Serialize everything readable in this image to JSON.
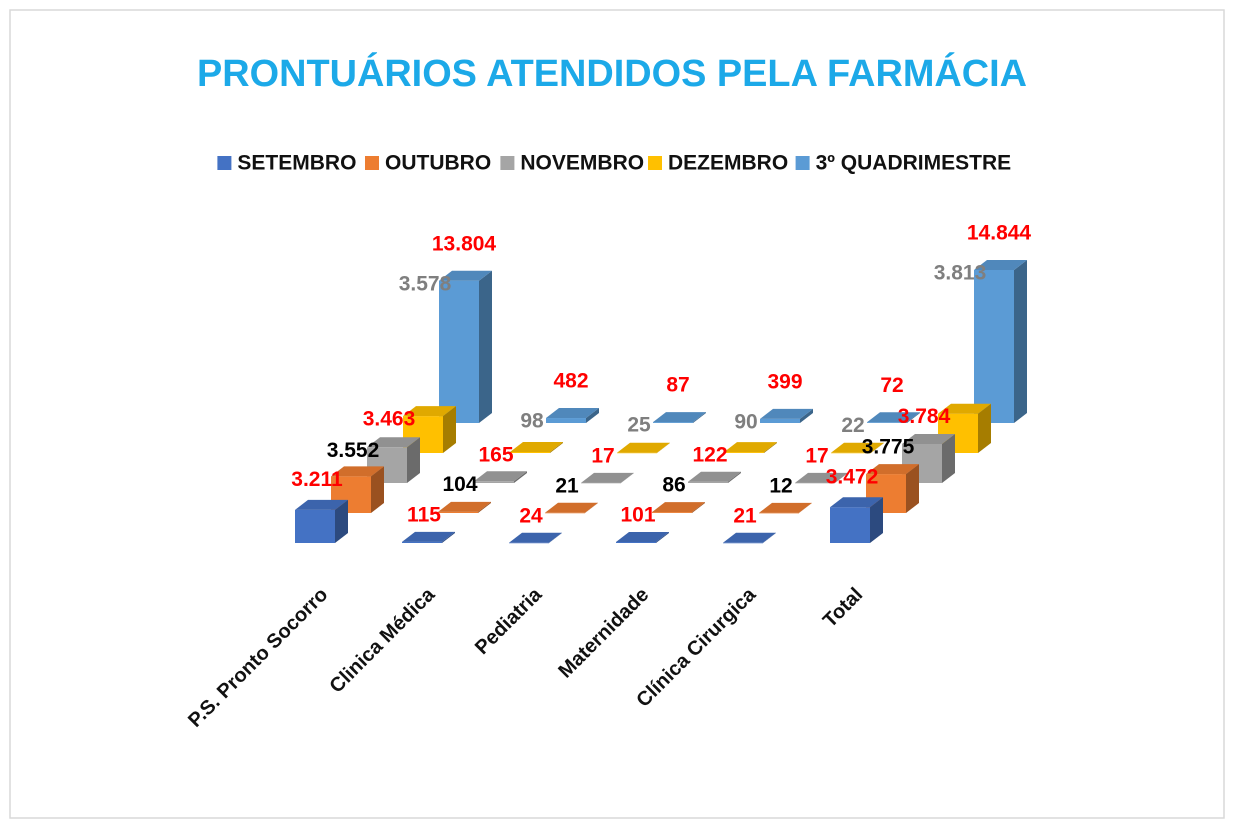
{
  "chart_data": {
    "type": "bar3d",
    "title": "PRONTUÁRIOS ATENDIDOS PELA FARMÁCIA",
    "categories": [
      "P.S. Pronto Socorro",
      "Clinica Médica",
      "Pediatria",
      "Maternidade",
      "Clínica Cirurgica",
      "Total"
    ],
    "series": [
      {
        "name": "SETEMBRO",
        "color": "#4472c4",
        "label_color": "#ff0000",
        "values": [
          3211,
          115,
          24,
          101,
          21,
          3472
        ],
        "value_labels": [
          "3.211",
          "115",
          "24",
          "101",
          "21",
          "3.472"
        ]
      },
      {
        "name": "OUTUBRO",
        "color": "#ed7d31",
        "label_color": "#000000",
        "values": [
          3552,
          104,
          21,
          86,
          12,
          3775
        ],
        "value_labels": [
          "3.552",
          "104",
          "21",
          "86",
          "12",
          "3.775"
        ]
      },
      {
        "name": "NOVEMBRO",
        "color": "#a5a5a5",
        "label_color": "#ff0000",
        "values": [
          3463,
          165,
          17,
          122,
          17,
          3784
        ],
        "value_labels": [
          "3.463",
          "165",
          "17",
          "122",
          "17",
          "3.784"
        ]
      },
      {
        "name": "DEZEMBRO",
        "color": "#ffc000",
        "label_color": "#7f7f7f",
        "values": [
          3578,
          98,
          25,
          90,
          22,
          3813
        ],
        "value_labels": [
          "3.578",
          "98",
          "25",
          "90",
          "22",
          "3.813"
        ]
      },
      {
        "name": "3º QUADRIMESTRE",
        "color": "#5b9bd5",
        "label_color": "#ff0000",
        "values": [
          13804,
          482,
          87,
          399,
          72,
          14844
        ],
        "value_labels": [
          "13.804",
          "482",
          "87",
          "399",
          "72",
          "14.844"
        ]
      }
    ]
  }
}
